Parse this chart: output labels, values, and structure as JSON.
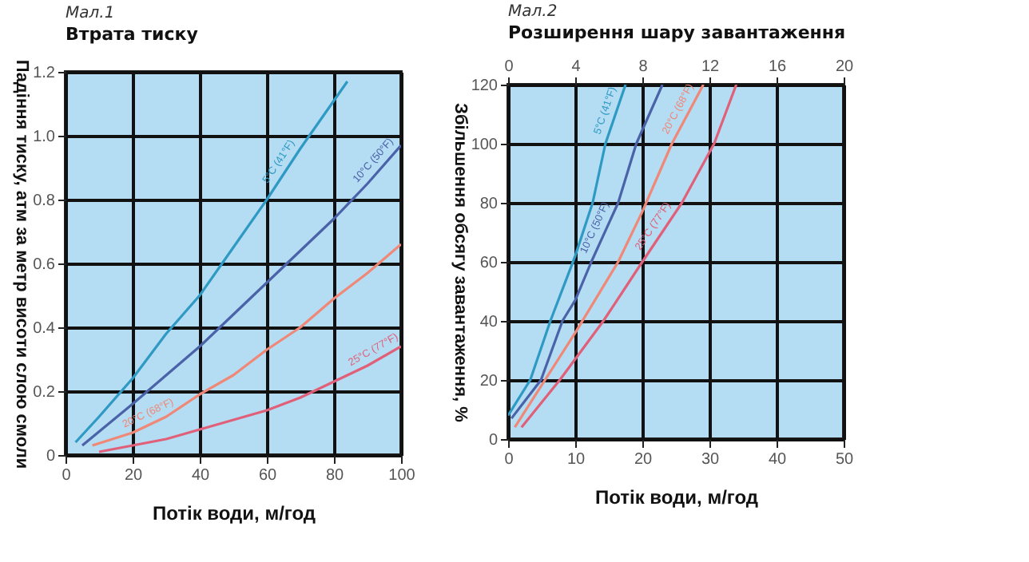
{
  "chart_data": [
    {
      "type": "line",
      "title": "Мал.1",
      "subtitle": "Втрата тиску",
      "xlabel": "Потік води, м/год",
      "ylabel": "Падіння тиску, атм за метр висоти слою смоли",
      "xlim": [
        0,
        100
      ],
      "xticks": [
        0,
        20,
        40,
        60,
        80,
        100
      ],
      "ylim": [
        0,
        1.2
      ],
      "yticks": [
        0,
        0.2,
        0.4,
        0.6,
        0.8,
        {
          "value": 1,
          "label": "1.0"
        },
        1.2
      ],
      "grid": true,
      "marker": "none",
      "line_style": "solid",
      "series": [
        {
          "name": "5°C (41°F)",
          "color": "#2e9ac4",
          "x": [
            3,
            10,
            20,
            30,
            40,
            50,
            60,
            70,
            80,
            84
          ],
          "values": [
            0.04,
            0.12,
            0.24,
            0.38,
            0.5,
            0.65,
            0.8,
            0.96,
            1.11,
            1.17
          ]
        },
        {
          "name": "10°C (50°F)",
          "color": "#4a62a8",
          "x": [
            5,
            20,
            30,
            40,
            50,
            60,
            70,
            80,
            90,
            100
          ],
          "values": [
            0.03,
            0.16,
            0.25,
            0.34,
            0.44,
            0.54,
            0.64,
            0.74,
            0.85,
            0.97
          ]
        },
        {
          "name": "20°C (68°F)",
          "color": "#f08878",
          "x": [
            8,
            20,
            30,
            40,
            50,
            60,
            70,
            80,
            90,
            100
          ],
          "values": [
            0.03,
            0.07,
            0.12,
            0.19,
            0.25,
            0.33,
            0.4,
            0.49,
            0.57,
            0.66
          ]
        },
        {
          "name": "25°C (77°F)",
          "color": "#e0607a",
          "x": [
            10,
            20,
            30,
            40,
            50,
            60,
            70,
            80,
            90,
            100
          ],
          "values": [
            0.01,
            0.03,
            0.05,
            0.08,
            0.11,
            0.14,
            0.18,
            0.23,
            0.28,
            0.34
          ]
        }
      ]
    },
    {
      "type": "line",
      "title": "Мал.2",
      "subtitle": "Розширення шару завантаження",
      "xlabel": "Потік води, м/год",
      "ylabel": "Збільшення обсягу завантаження, %",
      "xlim": [
        0,
        50
      ],
      "xticks": [
        0,
        10,
        20,
        30,
        40,
        50
      ],
      "x2lim": [
        0,
        20
      ],
      "x2ticks": [
        0,
        4,
        8,
        12,
        16,
        20
      ],
      "ylim": [
        0,
        120
      ],
      "yticks": [
        0,
        20,
        40,
        60,
        80,
        100,
        120
      ],
      "grid": true,
      "marker": "none",
      "line_style": "solid",
      "series": [
        {
          "name": "5°C (41°F)",
          "color": "#2e9ac4",
          "x": [
            0,
            3.3,
            6.3,
            10,
            12.6,
            14.5,
            17.5
          ],
          "values": [
            8,
            20,
            40,
            62,
            80,
            100,
            120
          ]
        },
        {
          "name": "10°C (50°F)",
          "color": "#4a62a8",
          "x": [
            0.5,
            4.9,
            8.1,
            10,
            12.4,
            16.4,
            19.1,
            23
          ],
          "values": [
            7,
            20,
            40,
            47,
            60,
            80,
            100,
            120
          ]
        },
        {
          "name": "20°C (68°F)",
          "color": "#f08878",
          "x": [
            1,
            5.5,
            10,
            16.4,
            20,
            24.4,
            29.1
          ],
          "values": [
            4,
            20,
            36,
            60,
            77,
            100,
            120
          ]
        },
        {
          "name": "25°C (77°F)",
          "color": "#e0607a",
          "x": [
            2,
            7.7,
            14.2,
            20,
            25.9,
            30.7,
            34
          ],
          "values": [
            4,
            20,
            40,
            60,
            80,
            100,
            120
          ]
        }
      ]
    }
  ]
}
